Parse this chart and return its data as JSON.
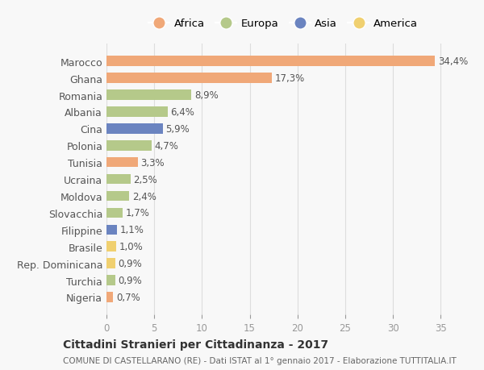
{
  "categories": [
    "Marocco",
    "Ghana",
    "Romania",
    "Albania",
    "Cina",
    "Polonia",
    "Tunisia",
    "Ucraina",
    "Moldova",
    "Slovacchia",
    "Filippine",
    "Brasile",
    "Rep. Dominicana",
    "Turchia",
    "Nigeria"
  ],
  "values": [
    34.4,
    17.3,
    8.9,
    6.4,
    5.9,
    4.7,
    3.3,
    2.5,
    2.4,
    1.7,
    1.1,
    1.0,
    0.9,
    0.9,
    0.7
  ],
  "labels": [
    "34,4%",
    "17,3%",
    "8,9%",
    "6,4%",
    "5,9%",
    "4,7%",
    "3,3%",
    "2,5%",
    "2,4%",
    "1,7%",
    "1,1%",
    "1,0%",
    "0,9%",
    "0,9%",
    "0,7%"
  ],
  "continents": [
    "Africa",
    "Africa",
    "Europa",
    "Europa",
    "Asia",
    "Europa",
    "Africa",
    "Europa",
    "Europa",
    "Europa",
    "Asia",
    "America",
    "America",
    "Europa",
    "Africa"
  ],
  "continent_colors": {
    "Africa": "#F0A878",
    "Europa": "#B5C98A",
    "Asia": "#6B84C0",
    "America": "#F0D070"
  },
  "legend_order": [
    "Africa",
    "Europa",
    "Asia",
    "America"
  ],
  "title": "Cittadini Stranieri per Cittadinanza - 2017",
  "subtitle": "COMUNE DI CASTELLARANO (RE) - Dati ISTAT al 1° gennaio 2017 - Elaborazione TUTTITALIA.IT",
  "xlim": [
    0,
    37
  ],
  "xticks": [
    0,
    5,
    10,
    15,
    20,
    25,
    30,
    35
  ],
  "background_color": "#f8f8f8",
  "grid_color": "#dddddd"
}
